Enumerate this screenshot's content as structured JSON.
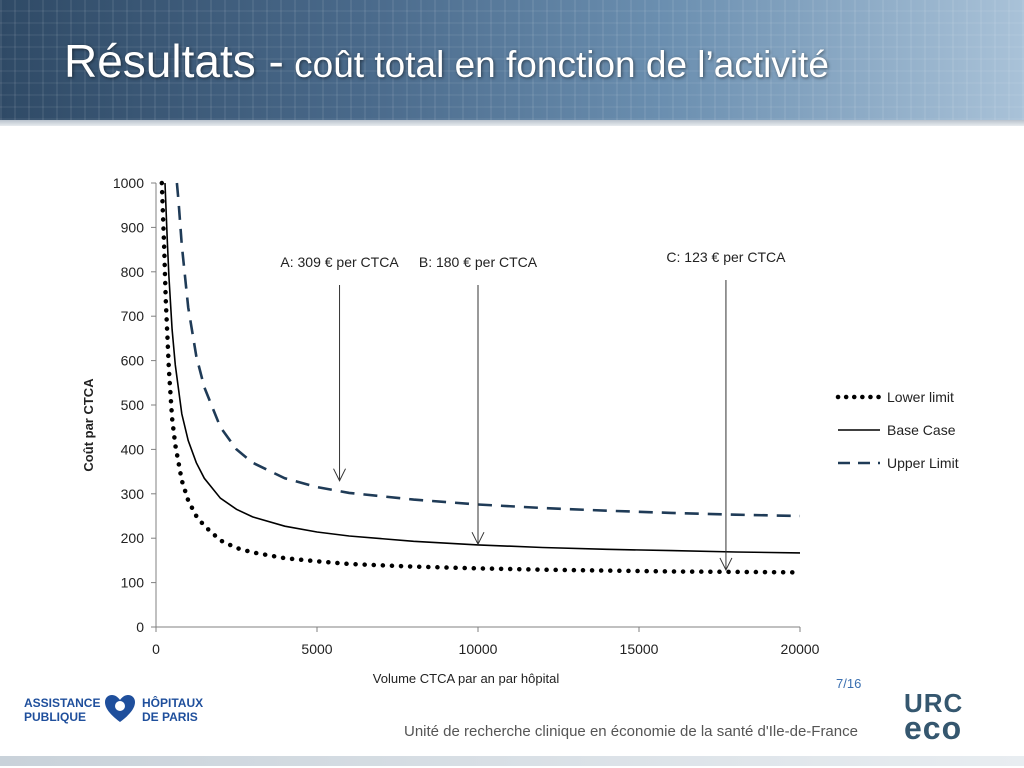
{
  "slide": {
    "title_main": "Résultats -",
    "title_sub": " coût total en fonction de l’activité",
    "page_number": "7/16",
    "footer_text": "Unité de recherche clinique en économie de la santé d'Ile-de-France",
    "logo_left": {
      "line1a": "ASSISTANCE",
      "line1b": "PUBLIQUE",
      "line2a": "HÔPITAUX",
      "line2b": "DE PARIS"
    },
    "logo_right": {
      "line1": "URC",
      "line2": "eco"
    }
  },
  "chart_data": {
    "type": "line",
    "title": "",
    "xlabel": "Volume  CTCA par an par hôpital",
    "ylabel": "Coût  par  CTCA",
    "xlim": [
      0,
      20000
    ],
    "ylim": [
      0,
      1000
    ],
    "x_ticks": [
      0,
      5000,
      10000,
      15000,
      20000
    ],
    "y_ticks": [
      0,
      100,
      200,
      300,
      400,
      500,
      600,
      700,
      800,
      900,
      1000
    ],
    "grid": false,
    "legend_position": "right",
    "series": [
      {
        "name": "Lower limit",
        "style": "dotted",
        "color": "#000000",
        "x": [
          180,
          250,
          300,
          400,
          500,
          600,
          800,
          1000,
          1250,
          1500,
          2000,
          2500,
          3000,
          4000,
          5000,
          6000,
          8000,
          10000,
          12000,
          14000,
          16000,
          18000,
          20000
        ],
        "y": [
          1000,
          860,
          740,
          580,
          470,
          410,
          330,
          285,
          250,
          228,
          195,
          178,
          168,
          155,
          148,
          142,
          136,
          132,
          129,
          127,
          125,
          124,
          123
        ]
      },
      {
        "name": "Base Case",
        "style": "solid",
        "color": "#000000",
        "x": [
          280,
          350,
          400,
          500,
          600,
          800,
          1000,
          1250,
          1500,
          2000,
          2500,
          3000,
          4000,
          5000,
          6000,
          8000,
          10000,
          12000,
          14000,
          16000,
          18000,
          20000
        ],
        "y": [
          1000,
          870,
          790,
          670,
          590,
          480,
          420,
          370,
          335,
          290,
          265,
          248,
          227,
          214,
          205,
          193,
          185,
          179,
          175,
          172,
          169,
          167
        ]
      },
      {
        "name": "Upper Limit",
        "style": "dashed",
        "color": "#1f3b57",
        "x": [
          650,
          700,
          800,
          1000,
          1250,
          1500,
          2000,
          2500,
          3000,
          4000,
          5000,
          6000,
          8000,
          10000,
          12000,
          14000,
          16000,
          18000,
          20000
        ],
        "y": [
          1000,
          960,
          860,
          720,
          610,
          540,
          450,
          400,
          370,
          335,
          315,
          302,
          287,
          276,
          268,
          262,
          257,
          253,
          250
        ]
      }
    ],
    "annotations": [
      {
        "label": "A: 309 € per CTCA",
        "x": 5700,
        "y": 325
      },
      {
        "label": "B: 180 € per CTCA",
        "x": 10000,
        "y": 182
      },
      {
        "label": "C: 123 € per CTCA",
        "x": 17700,
        "y": 124
      }
    ]
  }
}
